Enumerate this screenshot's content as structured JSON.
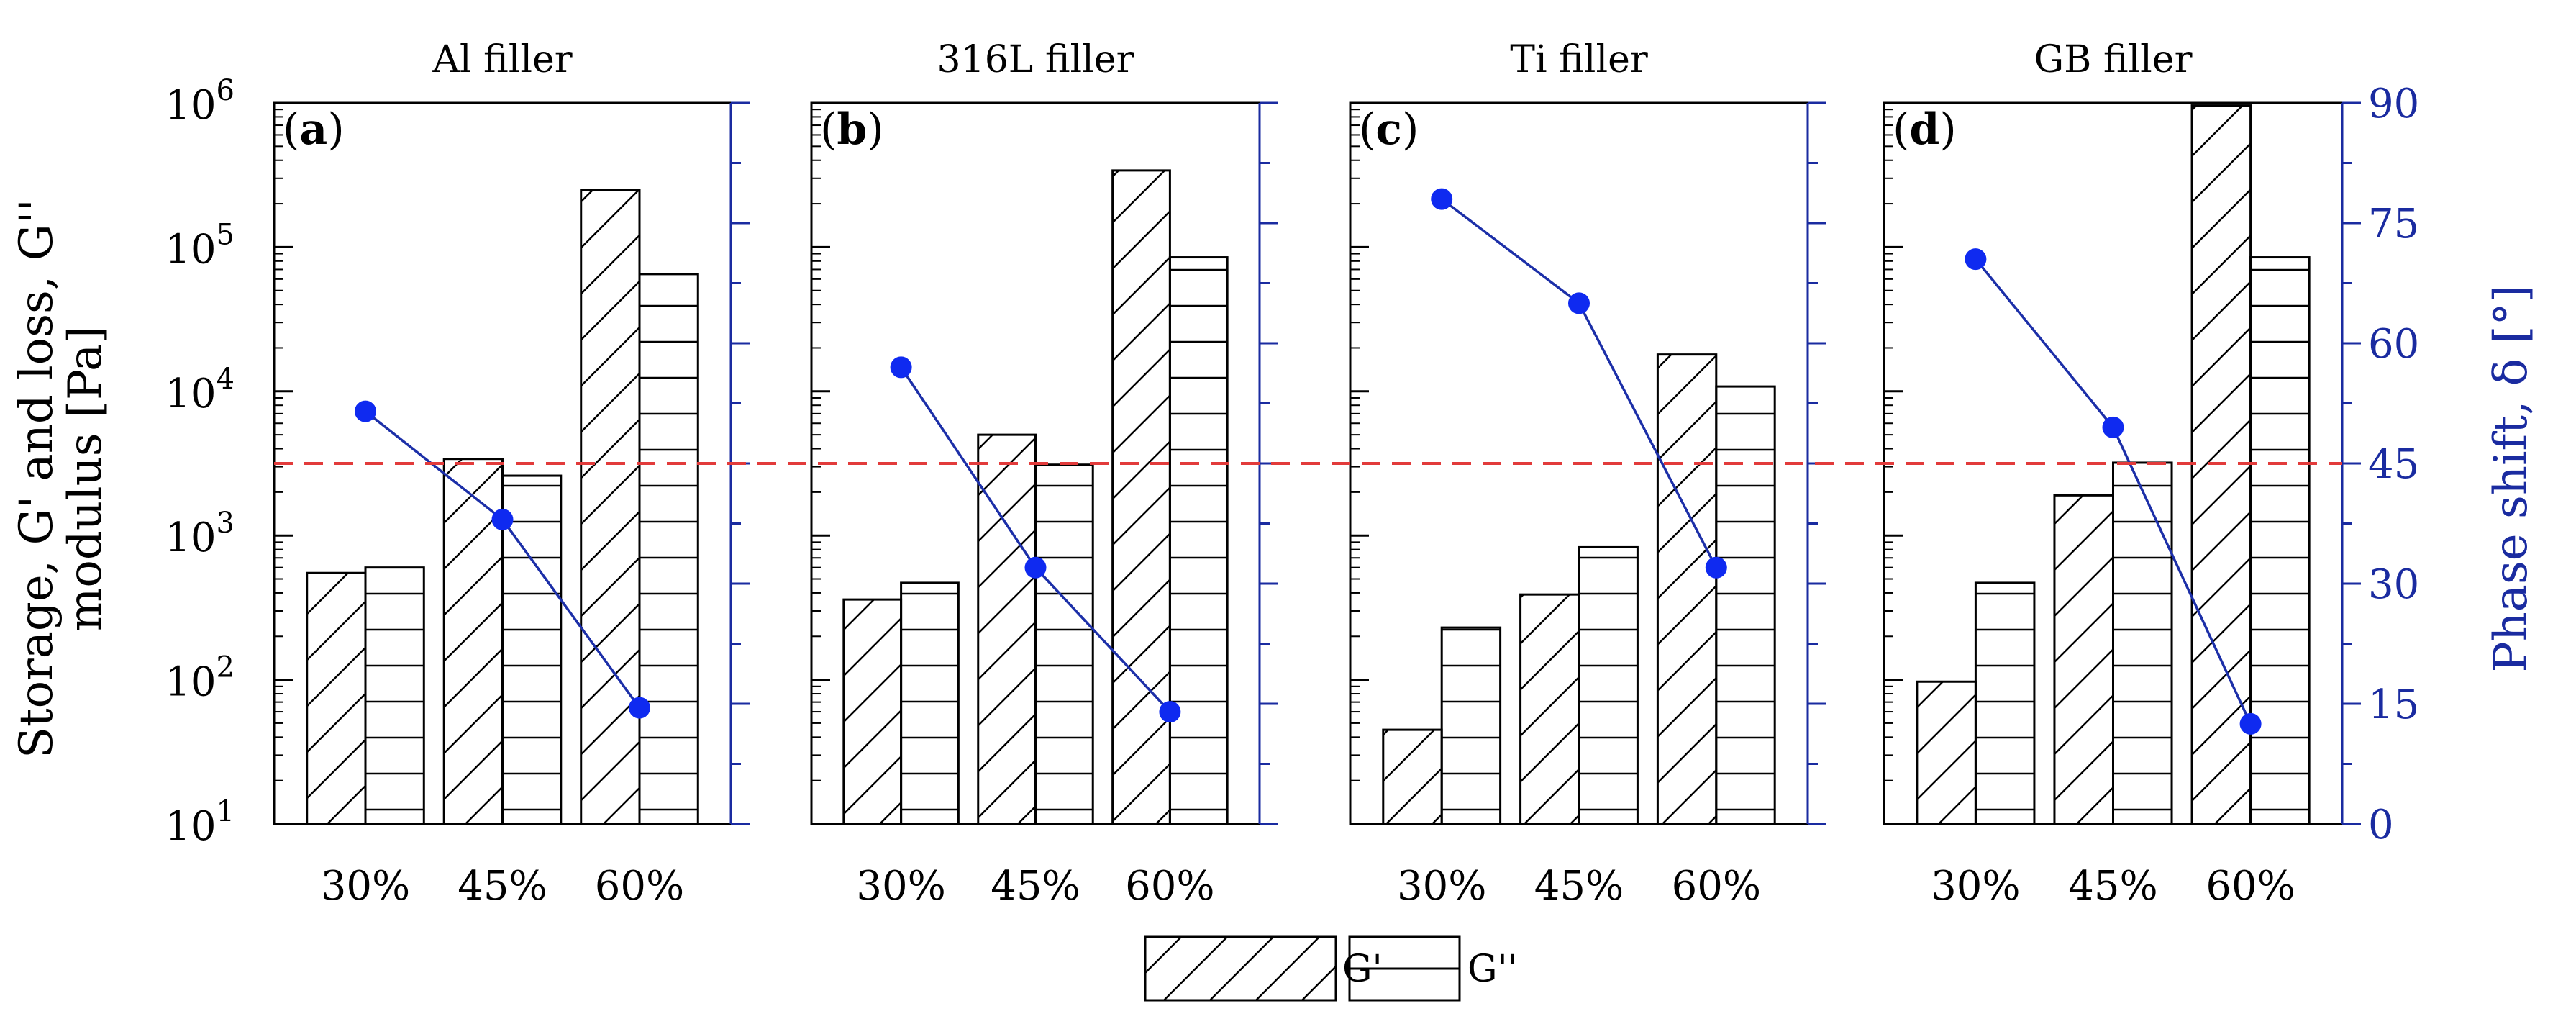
{
  "chart_data": {
    "type": "bar",
    "y_axis_label_lines": [
      "Storage, G' and loss, G''",
      "modulus [Pa]"
    ],
    "right_axis_label": "Phase shift,  δ [°]",
    "y_scale": "log",
    "ylim": [
      10,
      1000000
    ],
    "y_ticks": [
      {
        "value": 10,
        "base": "10",
        "exp": "1"
      },
      {
        "value": 100,
        "base": "10",
        "exp": "2"
      },
      {
        "value": 1000,
        "base": "10",
        "exp": "3"
      },
      {
        "value": 10000,
        "base": "10",
        "exp": "4"
      },
      {
        "value": 100000,
        "base": "10",
        "exp": "5"
      },
      {
        "value": 1000000,
        "base": "10",
        "exp": "6"
      }
    ],
    "right_ylim": [
      0,
      90
    ],
    "right_ticks": [
      "0",
      "15",
      "30",
      "45",
      "60",
      "75",
      "90"
    ],
    "categories": [
      "30%",
      "45%",
      "60%"
    ],
    "reference_line_phase_deg": 45,
    "legend": [
      {
        "key": "G'",
        "label": "G'",
        "pattern": "diagonal"
      },
      {
        "key": "G''",
        "label": "G''",
        "pattern": "horizontal"
      }
    ],
    "colors": {
      "phase_line": "#1c2fa8",
      "phase_marker": "#0f2af0",
      "right_axis": "#1a2ba0",
      "reference_line": "#e23b3b"
    },
    "panels": [
      {
        "title": "Al filler",
        "letter": "a",
        "g_prime": [
          550,
          3400,
          250000
        ],
        "g_double_prime": [
          600,
          2600,
          65000
        ],
        "phase_shift": [
          51.5,
          38,
          14.5
        ]
      },
      {
        "title": "316L filler",
        "letter": "b",
        "g_prime": [
          360,
          5000,
          340000
        ],
        "g_double_prime": [
          470,
          3100,
          85000
        ],
        "phase_shift": [
          57,
          32,
          14
        ]
      },
      {
        "title": "Ti filler",
        "letter": "c",
        "g_prime": [
          45,
          390,
          18000
        ],
        "g_double_prime": [
          230,
          830,
          10800
        ],
        "phase_shift": [
          78,
          65,
          32
        ]
      },
      {
        "title": "GB filler",
        "letter": "d",
        "g_prime": [
          97,
          1900,
          960000
        ],
        "g_double_prime": [
          470,
          3200,
          85000
        ],
        "phase_shift": [
          70.5,
          49.5,
          12.5
        ]
      }
    ]
  }
}
